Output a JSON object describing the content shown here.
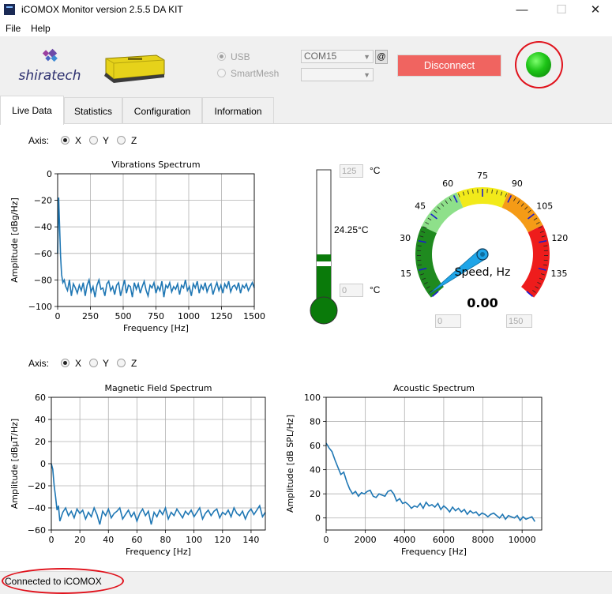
{
  "window": {
    "title": "iCOMOX Monitor version 2.5.5 DA KIT",
    "minimize_glyph": "—",
    "maximize_glyph": "☐",
    "close_glyph": "✕"
  },
  "menu": {
    "file": "File",
    "help": "Help"
  },
  "header": {
    "logo_text": "shiratech",
    "connection": {
      "usb_label": "USB",
      "smartmesh_label": "SmartMesh",
      "port_value": "COM15",
      "mesh_value": "",
      "at_label": "@",
      "disconnect_label": "Disconnect",
      "status_led_color": "#1dc417"
    }
  },
  "tabs": [
    {
      "label": "Live Data",
      "active": true
    },
    {
      "label": "Statistics"
    },
    {
      "label": "Configuration"
    },
    {
      "label": "Information"
    }
  ],
  "axis_selector_1": {
    "label": "Axis:",
    "x": "X",
    "y": "Y",
    "z": "Z",
    "selected": "X"
  },
  "axis_selector_2": {
    "label": "Axis:",
    "x": "X",
    "y": "Y",
    "z": "Z",
    "selected": "X"
  },
  "thermometer": {
    "max_value": "125",
    "min_value": "0",
    "unit_top": "°C",
    "unit_bottom": "°C",
    "reading": "24.25°C",
    "level_fraction": 0.37
  },
  "gauge": {
    "label": "Speed, Hz",
    "value": "0.00",
    "min_value": "0",
    "max_value": "150",
    "tick_labels": [
      "15",
      "30",
      "45",
      "60",
      "75",
      "90",
      "105",
      "120",
      "135"
    ]
  },
  "status": {
    "text": "Connected to iCOMOX"
  },
  "chart_data": [
    {
      "type": "line",
      "title": "Vibrations Spectrum",
      "xlabel": "Frequency [Hz]",
      "ylabel": "Amplitude [dBg/Hz]",
      "xlim": [
        0,
        1500
      ],
      "ylim": [
        -100,
        0
      ],
      "xticks": [
        0,
        250,
        500,
        750,
        1000,
        1250,
        1500
      ],
      "yticks": [
        0,
        -20,
        -40,
        -60,
        -80,
        -100
      ],
      "grid": true,
      "color": "#1f77b4",
      "x": [
        0,
        8,
        15,
        22,
        30,
        40,
        50,
        62,
        75,
        90,
        105,
        120,
        135,
        150,
        165,
        180,
        195,
        210,
        225,
        240,
        255,
        270,
        285,
        300,
        315,
        330,
        345,
        360,
        375,
        390,
        405,
        420,
        435,
        450,
        465,
        480,
        495,
        510,
        525,
        540,
        555,
        570,
        585,
        600,
        615,
        630,
        645,
        660,
        675,
        690,
        705,
        720,
        735,
        750,
        765,
        780,
        795,
        810,
        825,
        840,
        855,
        870,
        885,
        900,
        915,
        930,
        945,
        960,
        975,
        990,
        1005,
        1020,
        1035,
        1050,
        1065,
        1080,
        1095,
        1110,
        1125,
        1140,
        1155,
        1170,
        1185,
        1200,
        1215,
        1230,
        1245,
        1260,
        1275,
        1290,
        1305,
        1320,
        1335,
        1350,
        1365,
        1380,
        1395,
        1410,
        1425,
        1440,
        1455,
        1470,
        1485,
        1500
      ],
      "y": [
        -60,
        -18,
        -40,
        -62,
        -76,
        -82,
        -80,
        -85,
        -88,
        -80,
        -92,
        -83,
        -86,
        -90,
        -84,
        -88,
        -82,
        -92,
        -84,
        -80,
        -89,
        -85,
        -93,
        -84,
        -80,
        -87,
        -86,
        -92,
        -83,
        -81,
        -88,
        -85,
        -91,
        -84,
        -82,
        -92,
        -86,
        -80,
        -90,
        -84,
        -85,
        -93,
        -82,
        -87,
        -83,
        -90,
        -85,
        -81,
        -88,
        -92,
        -84,
        -86,
        -82,
        -90,
        -85,
        -88,
        -81,
        -93,
        -84,
        -86,
        -82,
        -89,
        -85,
        -87,
        -83,
        -91,
        -84,
        -86,
        -80,
        -88,
        -85,
        -92,
        -83,
        -86,
        -81,
        -90,
        -84,
        -87,
        -82,
        -89,
        -85,
        -83,
        -91,
        -86,
        -82,
        -88,
        -84,
        -90,
        -83,
        -86,
        -81,
        -89,
        -85,
        -84,
        -87,
        -82,
        -90,
        -84,
        -86,
        -83,
        -88,
        -85,
        -82,
        -86
      ]
    },
    {
      "type": "line",
      "title": "Magnetic Field Spectrum",
      "xlabel": "Frequency [Hz]",
      "ylabel": "Amplitude [dBμT/Hz]",
      "xlim": [
        0,
        150
      ],
      "ylim": [
        -60,
        60
      ],
      "xticks": [
        0,
        20,
        40,
        60,
        80,
        100,
        120,
        140
      ],
      "yticks": [
        60,
        40,
        20,
        0,
        -20,
        -40,
        -60
      ],
      "grid": true,
      "color": "#1f77b4",
      "x": [
        0,
        1,
        2,
        3,
        4,
        5,
        6,
        8,
        10,
        12,
        14,
        16,
        18,
        20,
        22,
        24,
        26,
        28,
        30,
        32,
        34,
        36,
        38,
        40,
        42,
        44,
        46,
        48,
        50,
        52,
        54,
        56,
        58,
        60,
        62,
        64,
        66,
        68,
        70,
        72,
        74,
        76,
        78,
        80,
        82,
        84,
        86,
        88,
        90,
        92,
        94,
        96,
        98,
        100,
        102,
        104,
        106,
        108,
        110,
        112,
        114,
        116,
        118,
        120,
        122,
        124,
        126,
        128,
        130,
        132,
        134,
        136,
        138,
        140,
        142,
        144,
        146,
        148,
        150
      ],
      "y": [
        0,
        -5,
        -20,
        -30,
        -42,
        -38,
        -52,
        -44,
        -40,
        -47,
        -43,
        -49,
        -41,
        -45,
        -42,
        -50,
        -44,
        -48,
        -40,
        -46,
        -55,
        -43,
        -47,
        -41,
        -49,
        -45,
        -43,
        -40,
        -50,
        -46,
        -42,
        -48,
        -44,
        -52,
        -45,
        -41,
        -47,
        -43,
        -55,
        -44,
        -48,
        -42,
        -46,
        -40,
        -50,
        -44,
        -47,
        -41,
        -45,
        -49,
        -43,
        -46,
        -42,
        -48,
        -44,
        -40,
        -50,
        -45,
        -42,
        -47,
        -43,
        -41,
        -49,
        -44,
        -46,
        -42,
        -48,
        -40,
        -45,
        -47,
        -43,
        -50,
        -44,
        -41,
        -46,
        -42,
        -38,
        -48,
        -44
      ]
    },
    {
      "type": "line",
      "title": "Acoustic Spectrum",
      "xlabel": "Frequency [Hz]",
      "ylabel": "Amplitude [dB SPL/Hz]",
      "xlim": [
        0,
        11000
      ],
      "ylim": [
        -10,
        100
      ],
      "xticks": [
        0,
        2000,
        4000,
        6000,
        8000,
        10000
      ],
      "yticks": [
        100,
        80,
        60,
        40,
        20,
        0
      ],
      "grid": true,
      "color": "#1f77b4",
      "x": [
        0,
        150,
        300,
        450,
        600,
        750,
        900,
        1050,
        1200,
        1350,
        1500,
        1650,
        1800,
        1950,
        2100,
        2250,
        2400,
        2550,
        2700,
        2850,
        3000,
        3150,
        3300,
        3450,
        3600,
        3750,
        3900,
        4050,
        4200,
        4350,
        4500,
        4650,
        4800,
        4950,
        5100,
        5250,
        5400,
        5550,
        5700,
        5850,
        6000,
        6150,
        6300,
        6450,
        6600,
        6750,
        6900,
        7050,
        7200,
        7350,
        7500,
        7650,
        7800,
        7950,
        8100,
        8250,
        8400,
        8550,
        8700,
        8850,
        9000,
        9150,
        9300,
        9450,
        9600,
        9750,
        9900,
        10050,
        10200,
        10350,
        10500,
        10650
      ],
      "y": [
        62,
        58,
        55,
        48,
        42,
        36,
        38,
        30,
        24,
        20,
        22,
        18,
        21,
        20,
        22,
        23,
        18,
        17,
        20,
        19,
        18,
        22,
        23,
        20,
        14,
        16,
        12,
        13,
        11,
        8,
        10,
        9,
        12,
        8,
        13,
        10,
        11,
        9,
        12,
        7,
        10,
        8,
        5,
        9,
        6,
        8,
        5,
        7,
        3,
        6,
        4,
        5,
        2,
        4,
        3,
        1,
        3,
        4,
        2,
        0,
        3,
        -1,
        2,
        1,
        0,
        2,
        -2,
        1,
        -1,
        0,
        1,
        -3
      ]
    }
  ]
}
